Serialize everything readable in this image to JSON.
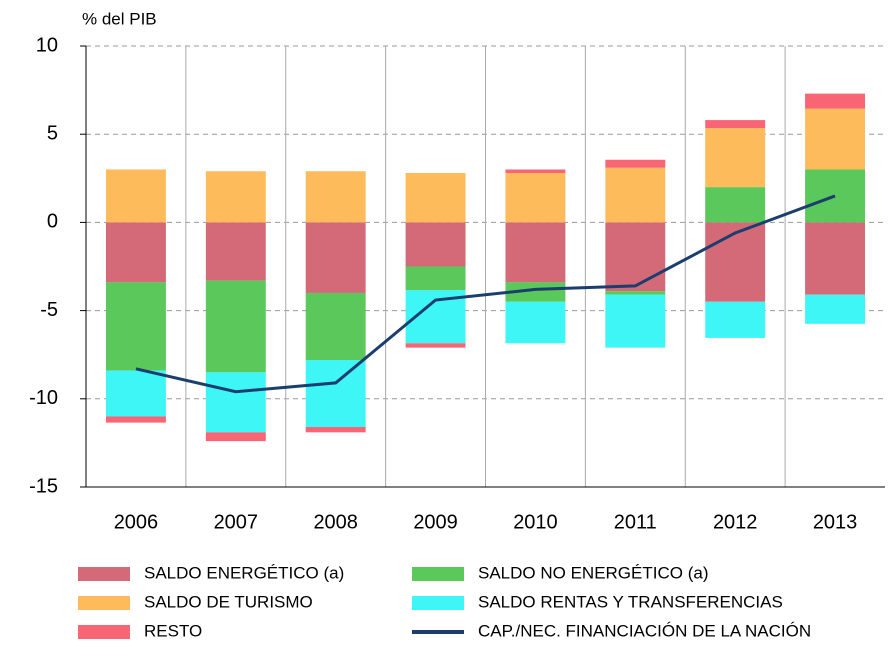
{
  "chart_data": {
    "type": "bar",
    "stacked": true,
    "y_label": "% del PIB",
    "categories": [
      "2006",
      "2007",
      "2008",
      "2009",
      "2010",
      "2011",
      "2012",
      "2013"
    ],
    "ylim": [
      -15,
      10
    ],
    "yticks": [
      -15,
      -10,
      -5,
      0,
      5,
      10
    ],
    "grid": true,
    "series": [
      {
        "name": "SALDO ENERGÉTICO (a)",
        "color": "#d46a78",
        "values": [
          -3.4,
          -3.3,
          -4.0,
          -2.5,
          -3.4,
          -3.9,
          -4.5,
          -4.1
        ]
      },
      {
        "name": "SALDO NO ENERGÉTICO (a)",
        "color": "#5ac85a",
        "values": [
          -5.0,
          -5.2,
          -3.8,
          -1.35,
          -1.1,
          -0.2,
          2.0,
          3.0
        ]
      },
      {
        "name": "SALDO DE TURISMO",
        "color": "#fdbb5c",
        "values": [
          3.0,
          2.9,
          2.9,
          2.8,
          2.8,
          3.1,
          3.35,
          3.45
        ]
      },
      {
        "name": "SALDO RENTAS Y TRANSFERENCIAS",
        "color": "#3ff6f6",
        "values": [
          -2.6,
          -3.4,
          -3.8,
          -3.0,
          -2.35,
          -3.0,
          -2.05,
          -1.65
        ]
      },
      {
        "name": "RESTO",
        "color": "#f86574",
        "values": [
          -0.35,
          -0.5,
          -0.3,
          -0.25,
          0.2,
          0.45,
          0.45,
          0.85
        ]
      },
      {
        "name": "CAP./NEC. FINANCIACIÓN DE LA NACIÓN",
        "type": "line",
        "color": "#1b3e6e",
        "values": [
          -8.3,
          -9.6,
          -9.1,
          -4.4,
          -3.8,
          -3.6,
          -0.6,
          1.5
        ]
      }
    ]
  }
}
